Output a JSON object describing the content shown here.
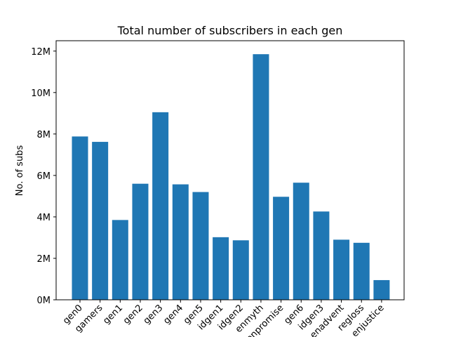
{
  "chart_data": {
    "type": "bar",
    "title": "Total number of subscribers in each gen",
    "xlabel": "",
    "ylabel": "No. of subs",
    "categories": [
      "gen0",
      "gamers",
      "gen1",
      "gen2",
      "gen3",
      "gen4",
      "gen5",
      "idgen1",
      "idgen2",
      "enmyth",
      "enpromise",
      "gen6",
      "idgen3",
      "enadvent",
      "regloss",
      "enjustice"
    ],
    "values": [
      7.88,
      7.62,
      3.85,
      5.6,
      9.05,
      5.57,
      5.2,
      3.02,
      2.87,
      11.85,
      4.97,
      5.65,
      4.26,
      2.9,
      2.75,
      0.95
    ],
    "value_unit": "millions",
    "ylim": [
      0,
      12.5
    ],
    "yticks": [
      0,
      2,
      4,
      6,
      8,
      10,
      12
    ],
    "ytick_labels": [
      "0M",
      "2M",
      "4M",
      "6M",
      "8M",
      "10M",
      "12M"
    ],
    "bar_color": "#1f77b4",
    "grid": false,
    "legend": "none"
  }
}
